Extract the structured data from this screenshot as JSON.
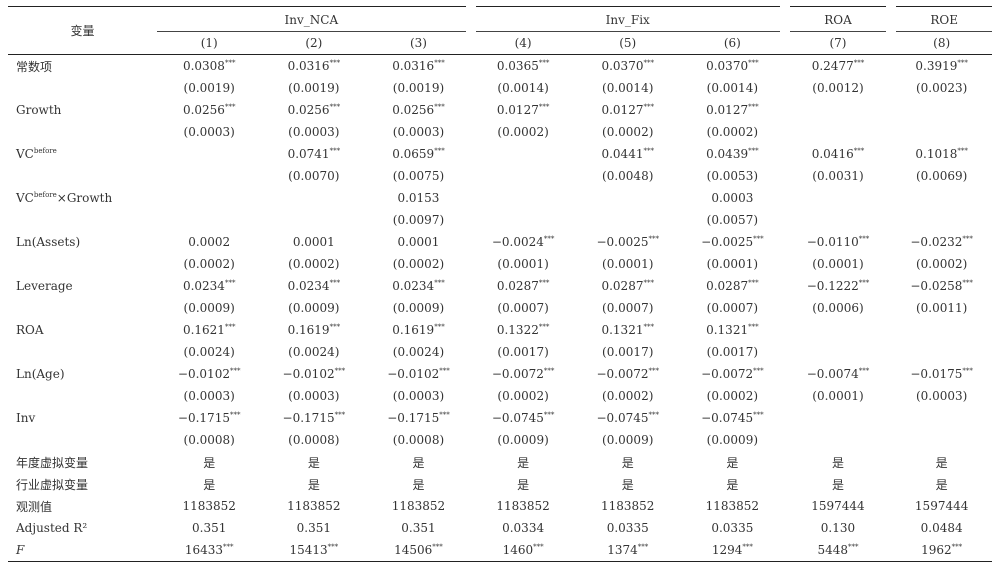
{
  "header": {
    "var_label": "变量",
    "groups": [
      "Inv_NCA",
      "Inv_Fix",
      "ROA",
      "ROE"
    ],
    "columns": [
      "(1)",
      "(2)",
      "(3)",
      "(4)",
      "(5)",
      "(6)",
      "(7)",
      "(8)"
    ]
  },
  "rows": [
    {
      "label": "常数项",
      "cells": [
        "0.0308***",
        "0.0316***",
        "0.0316***",
        "0.0365***",
        "0.0370***",
        "0.0370***",
        "0.2477***",
        "0.3919***"
      ]
    },
    {
      "label": "",
      "cells": [
        "(0.0019)",
        "(0.0019)",
        "(0.0019)",
        "(0.0014)",
        "(0.0014)",
        "(0.0014)",
        "(0.0012)",
        "(0.0023)"
      ]
    },
    {
      "label": "Growth",
      "cells": [
        "0.0256***",
        "0.0256***",
        "0.0256***",
        "0.0127***",
        "0.0127***",
        "0.0127***",
        "",
        ""
      ]
    },
    {
      "label": "",
      "cells": [
        "(0.0003)",
        "(0.0003)",
        "(0.0003)",
        "(0.0002)",
        "(0.0002)",
        "(0.0002)",
        "",
        ""
      ]
    },
    {
      "label": "VCbefore",
      "cells": [
        "",
        "0.0741***",
        "0.0659***",
        "",
        "0.0441***",
        "0.0439***",
        "0.0416***",
        "0.1018***"
      ]
    },
    {
      "label": "",
      "cells": [
        "",
        "(0.0070)",
        "(0.0075)",
        "",
        "(0.0048)",
        "(0.0053)",
        "(0.0031)",
        "(0.0069)"
      ]
    },
    {
      "label": "VCbefore×Growth",
      "cells": [
        "",
        "",
        "0.0153",
        "",
        "",
        "0.0003",
        "",
        ""
      ]
    },
    {
      "label": "",
      "cells": [
        "",
        "",
        "(0.0097)",
        "",
        "",
        "(0.0057)",
        "",
        ""
      ]
    },
    {
      "label": "Ln(Assets)",
      "cells": [
        "0.0002",
        "0.0001",
        "0.0001",
        "−0.0024***",
        "−0.0025***",
        "−0.0025***",
        "−0.0110***",
        "−0.0232***"
      ]
    },
    {
      "label": "",
      "cells": [
        "(0.0002)",
        "(0.0002)",
        "(0.0002)",
        "(0.0001)",
        "(0.0001)",
        "(0.0001)",
        "(0.0001)",
        "(0.0002)"
      ]
    },
    {
      "label": "Leverage",
      "cells": [
        "0.0234***",
        "0.0234***",
        "0.0234***",
        "0.0287***",
        "0.0287***",
        "0.0287***",
        "−0.1222***",
        "−0.0258***"
      ]
    },
    {
      "label": "",
      "cells": [
        "(0.0009)",
        "(0.0009)",
        "(0.0009)",
        "(0.0007)",
        "(0.0007)",
        "(0.0007)",
        "(0.0006)",
        "(0.0011)"
      ]
    },
    {
      "label": "ROA",
      "cells": [
        "0.1621***",
        "0.1619***",
        "0.1619***",
        "0.1322***",
        "0.1321***",
        "0.1321***",
        "",
        ""
      ]
    },
    {
      "label": "",
      "cells": [
        "(0.0024)",
        "(0.0024)",
        "(0.0024)",
        "(0.0017)",
        "(0.0017)",
        "(0.0017)",
        "",
        ""
      ]
    },
    {
      "label": "Ln(Age)",
      "cells": [
        "−0.0102***",
        "−0.0102***",
        "−0.0102***",
        "−0.0072***",
        "−0.0072***",
        "−0.0072***",
        "−0.0074***",
        "−0.0175***"
      ]
    },
    {
      "label": "",
      "cells": [
        "(0.0003)",
        "(0.0003)",
        "(0.0003)",
        "(0.0002)",
        "(0.0002)",
        "(0.0002)",
        "(0.0001)",
        "(0.0003)"
      ]
    },
    {
      "label": "Inv",
      "cells": [
        "−0.1715***",
        "−0.1715***",
        "−0.1715***",
        "−0.0745***",
        "−0.0745***",
        "−0.0745***",
        "",
        ""
      ]
    },
    {
      "label": "",
      "cells": [
        "(0.0008)",
        "(0.0008)",
        "(0.0008)",
        "(0.0009)",
        "(0.0009)",
        "(0.0009)",
        "",
        ""
      ]
    },
    {
      "label": "年度虚拟变量",
      "cells": [
        "是",
        "是",
        "是",
        "是",
        "是",
        "是",
        "是",
        "是"
      ]
    },
    {
      "label": "行业虚拟变量",
      "cells": [
        "是",
        "是",
        "是",
        "是",
        "是",
        "是",
        "是",
        "是"
      ]
    },
    {
      "label": "观测值",
      "cells": [
        "1183852",
        "1183852",
        "1183852",
        "1183852",
        "1183852",
        "1183852",
        "1597444",
        "1597444"
      ]
    },
    {
      "label": "Adjusted R²",
      "cells": [
        "0.351",
        "0.351",
        "0.351",
        "0.0334",
        "0.0335",
        "0.0335",
        "0.130",
        "0.0484"
      ]
    },
    {
      "label": "F",
      "cells": [
        "16433***",
        "15413***",
        "14506***",
        "1460***",
        "1374***",
        "1294***",
        "5448***",
        "1962***"
      ]
    }
  ]
}
